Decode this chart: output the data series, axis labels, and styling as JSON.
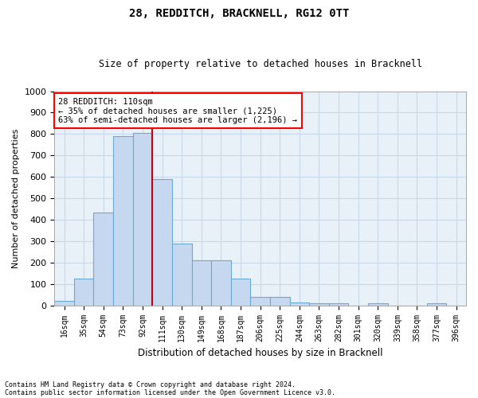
{
  "title": "28, REDDITCH, BRACKNELL, RG12 0TT",
  "subtitle": "Size of property relative to detached houses in Bracknell",
  "xlabel": "Distribution of detached houses by size in Bracknell",
  "ylabel": "Number of detached properties",
  "bar_color": "#c5d8ef",
  "bar_edge_color": "#6aaad4",
  "background_color": "#ffffff",
  "plot_bg_color": "#e8f0f8",
  "grid_color": "#c8d8e8",
  "marker_color": "#cc0000",
  "categories": [
    "16sqm",
    "35sqm",
    "54sqm",
    "73sqm",
    "92sqm",
    "111sqm",
    "130sqm",
    "149sqm",
    "168sqm",
    "187sqm",
    "206sqm",
    "225sqm",
    "244sqm",
    "263sqm",
    "282sqm",
    "301sqm",
    "320sqm",
    "339sqm",
    "358sqm",
    "377sqm",
    "396sqm"
  ],
  "values": [
    20,
    125,
    435,
    790,
    805,
    590,
    290,
    210,
    210,
    125,
    40,
    40,
    15,
    10,
    10,
    0,
    10,
    0,
    0,
    10,
    0
  ],
  "ylim": [
    0,
    1000
  ],
  "yticks": [
    0,
    100,
    200,
    300,
    400,
    500,
    600,
    700,
    800,
    900,
    1000
  ],
  "marker_bin_index": 4.5,
  "marker_label": "28 REDDITCH: 110sqm",
  "marker_line1": "← 35% of detached houses are smaller (1,225)",
  "marker_line2": "63% of semi-detached houses are larger (2,196) →",
  "footer1": "Contains HM Land Registry data © Crown copyright and database right 2024.",
  "footer2": "Contains public sector information licensed under the Open Government Licence v3.0."
}
